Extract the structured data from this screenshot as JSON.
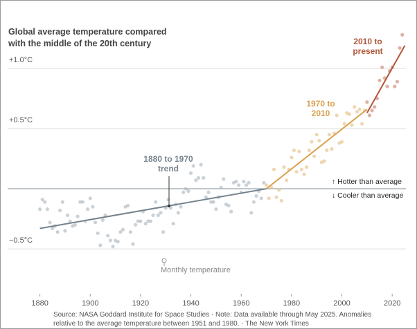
{
  "chart_data": {
    "type": "scatter",
    "title": "Global average temperature compared with the middle of the 20th century",
    "xlim": [
      1868,
      2026
    ],
    "xticks": [
      1880,
      1900,
      1920,
      1940,
      1960,
      1980,
      2000,
      2020
    ],
    "ylim": [
      -0.85,
      1.5
    ],
    "yticks": [
      {
        "value": -0.5,
        "label": "−0.5°C"
      },
      {
        "value": 0.5,
        "label": "+0.5°C"
      },
      {
        "value": 1.0,
        "label": "+1.0°C"
      }
    ],
    "grid": true,
    "reference_line": 0,
    "reference_labels": [
      "↑ Hotter than average",
      "↓ Cooler than average"
    ],
    "point_label": "Monthly temperature",
    "series": [
      {
        "color": "#a9b4bd",
        "x": [
          1880,
          1881,
          1882,
          1883,
          1884,
          1885,
          1886,
          1887,
          1888,
          1889,
          1890,
          1891,
          1892,
          1893,
          1894,
          1895,
          1896,
          1897,
          1898,
          1899,
          1900,
          1901,
          1902,
          1903,
          1904,
          1905,
          1906,
          1907,
          1908,
          1909,
          1910,
          1911,
          1912,
          1913,
          1914,
          1915,
          1916,
          1917,
          1918,
          1919,
          1920,
          1921,
          1922,
          1923,
          1924,
          1925,
          1926,
          1927,
          1928,
          1929,
          1930,
          1931,
          1932,
          1933,
          1934,
          1935,
          1936,
          1937,
          1938,
          1939,
          1940,
          1941,
          1942,
          1943,
          1944,
          1945,
          1946,
          1947,
          1948,
          1949,
          1950,
          1951,
          1952,
          1953,
          1954,
          1955,
          1956,
          1957,
          1958,
          1959,
          1960,
          1961,
          1962,
          1963,
          1964,
          1965,
          1966,
          1967,
          1968,
          1969
        ],
        "values": [
          -0.17,
          -0.09,
          -0.11,
          -0.17,
          -0.28,
          -0.33,
          -0.31,
          -0.36,
          -0.18,
          -0.11,
          -0.35,
          -0.22,
          -0.27,
          -0.31,
          -0.3,
          -0.23,
          -0.11,
          -0.11,
          -0.27,
          -0.17,
          -0.08,
          -0.15,
          -0.28,
          -0.37,
          -0.47,
          -0.26,
          -0.22,
          -0.39,
          -0.43,
          -0.48,
          -0.43,
          -0.44,
          -0.36,
          -0.34,
          -0.15,
          -0.14,
          -0.36,
          -0.46,
          -0.3,
          -0.27,
          -0.27,
          -0.19,
          -0.29,
          -0.27,
          -0.27,
          -0.22,
          -0.11,
          -0.22,
          -0.2,
          -0.36,
          -0.16,
          -0.09,
          -0.16,
          -0.29,
          -0.13,
          -0.2,
          -0.15,
          -0.03,
          0.0,
          -0.02,
          0.13,
          0.19,
          0.07,
          0.09,
          0.2,
          0.09,
          -0.07,
          -0.03,
          -0.11,
          -0.11,
          -0.17,
          -0.07,
          0.01,
          0.08,
          -0.13,
          -0.14,
          -0.19,
          0.05,
          0.06,
          0.03,
          -0.03,
          0.06,
          0.03,
          0.05,
          -0.2,
          -0.11,
          -0.06,
          -0.02,
          -0.08,
          0.05
        ]
      },
      {
        "color": "#e3bd7e",
        "x": [
          1970,
          1971,
          1972,
          1973,
          1974,
          1975,
          1976,
          1977,
          1978,
          1979,
          1980,
          1981,
          1982,
          1983,
          1984,
          1985,
          1986,
          1987,
          1988,
          1989,
          1990,
          1991,
          1992,
          1993,
          1994,
          1995,
          1996,
          1997,
          1998,
          1999,
          2000,
          2001,
          2002,
          2003,
          2004,
          2005,
          2006,
          2007,
          2008,
          2009
        ],
        "values": [
          0.03,
          -0.08,
          0.01,
          0.16,
          -0.07,
          -0.01,
          -0.1,
          0.18,
          0.07,
          0.16,
          0.26,
          0.32,
          0.14,
          0.31,
          0.16,
          0.12,
          0.18,
          0.32,
          0.39,
          0.27,
          0.45,
          0.4,
          0.22,
          0.23,
          0.32,
          0.45,
          0.33,
          0.46,
          0.61,
          0.38,
          0.39,
          0.54,
          0.63,
          0.62,
          0.53,
          0.68,
          0.64,
          0.66,
          0.54,
          0.65
        ]
      },
      {
        "color": "#c77f6a",
        "x": [
          2010,
          2011,
          2012,
          2013,
          2014,
          2015,
          2016,
          2017,
          2018,
          2019,
          2020,
          2021,
          2022,
          2023,
          2024
        ],
        "values": [
          0.72,
          0.61,
          0.65,
          0.68,
          0.75,
          0.9,
          1.01,
          0.92,
          0.85,
          0.98,
          1.01,
          0.85,
          0.89,
          1.17,
          1.28
        ]
      }
    ],
    "trends": [
      {
        "name": "1880 to 1970 trend",
        "color": "#76838d",
        "x": [
          1880,
          1970
        ],
        "values": [
          -0.33,
          0.0
        ]
      },
      {
        "name": "1970 to 2010",
        "color": "#d9a24e",
        "x": [
          1970,
          2010
        ],
        "values": [
          0.0,
          0.66
        ]
      },
      {
        "name": "2010 to present",
        "color": "#b0563a",
        "x": [
          2010,
          2025
        ],
        "values": [
          0.63,
          1.19
        ]
      }
    ],
    "source": "Source: NASA Goddard Institute for Space Studies · Note: Data available through May 2025. Anomalies relative to the average temperature between 1951 and 1980. · The New York Times"
  }
}
